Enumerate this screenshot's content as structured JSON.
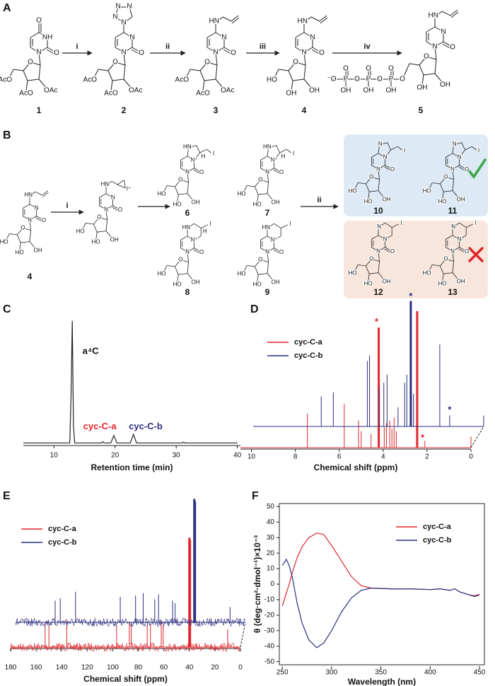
{
  "panel_labels": [
    "A",
    "B",
    "C",
    "D",
    "E",
    "F"
  ],
  "scheme_a": {
    "reagents": [
      "i",
      "ii",
      "iii",
      "iv"
    ],
    "structures": [
      {
        "number": "1",
        "labels": [
          "O",
          "NH",
          "O",
          "N",
          "O",
          "AcO",
          "AcO",
          "OAc"
        ]
      },
      {
        "number": "2",
        "labels": [
          "N",
          "N",
          "N",
          "N",
          "N",
          "O",
          "N",
          "O",
          "AcO",
          "AcO",
          "OAc"
        ]
      },
      {
        "number": "3",
        "labels": [
          "HN",
          "N",
          "O",
          "N",
          "O",
          "AcO",
          "AcO",
          "OAc"
        ]
      },
      {
        "number": "4",
        "labels": [
          "HN",
          "N",
          "O",
          "N",
          "O",
          "HO",
          "OH",
          "OH"
        ]
      },
      {
        "number": "5",
        "labels": [
          "HN",
          "N",
          "O",
          "N",
          "O",
          "O",
          "P",
          "O",
          "OH",
          "O",
          "P",
          "O",
          "OH",
          "O",
          "P",
          "O",
          "OH",
          "⁻O",
          "OH",
          "OH"
        ]
      }
    ]
  },
  "scheme_b": {
    "reagents": [
      "i",
      "ii"
    ],
    "structures": [
      {
        "number": "4",
        "labels": [
          "HN",
          "N",
          "O",
          "N",
          "O",
          "HO",
          "HO",
          "OH"
        ]
      },
      {
        "labels": [
          "HN",
          "I⁺",
          "N",
          "O",
          "N",
          "O",
          "HO",
          "HO",
          "OH"
        ]
      },
      {
        "number": "6",
        "labels": [
          "HN",
          "I",
          "H",
          "N⁺",
          "O",
          "N",
          "O",
          "HO",
          "HO",
          "OH"
        ]
      },
      {
        "number": "7",
        "labels": [
          "HN",
          "I",
          "H",
          "N⁺",
          "O",
          "N",
          "O",
          "HO",
          "HO",
          "OH"
        ]
      },
      {
        "number": "8",
        "labels": [
          "HN",
          "I",
          "H",
          "N⁺",
          "O",
          "N",
          "O",
          "HO",
          "HO",
          "OH"
        ]
      },
      {
        "number": "9",
        "labels": [
          "HN",
          "I",
          "N⁺",
          "O",
          "N",
          "O",
          "HO",
          "HO",
          "OH"
        ]
      },
      {
        "number": "10",
        "labels": [
          "N",
          "I",
          "N",
          "O",
          "N",
          "O",
          "HO",
          "HO",
          "OH"
        ]
      },
      {
        "number": "11",
        "labels": [
          "N",
          "I",
          "N",
          "O",
          "N",
          "O",
          "HO",
          "HO",
          "OH"
        ]
      },
      {
        "number": "12",
        "labels": [
          "N",
          "I",
          "N",
          "O",
          "N",
          "O",
          "HO",
          "HO",
          "OH"
        ]
      },
      {
        "number": "13",
        "labels": [
          "N",
          "I",
          "N",
          "O",
          "N",
          "O",
          "HO",
          "HO",
          "OH"
        ]
      }
    ]
  },
  "chart_data": [
    {
      "type": "line",
      "xlabel": "Retention time (min)",
      "x": [
        5,
        12.6,
        12.8,
        13,
        13.2,
        13.4,
        17.8,
        18,
        18.2,
        19.3,
        19.8,
        20.3,
        22.5,
        23,
        23.5,
        31,
        31.2,
        31.4,
        40
      ],
      "series": [
        {
          "color": "#222222",
          "values": [
            1,
            1,
            40,
            100,
            15,
            1,
            1,
            2,
            1,
            1,
            7,
            1,
            1,
            8,
            1,
            1,
            1.6,
            1,
            1
          ]
        }
      ],
      "xlim": [
        5,
        40.5
      ],
      "xticks": [
        10,
        20,
        30,
        40
      ],
      "ylim": [
        0,
        105
      ],
      "annotations": [
        {
          "text": "a⁴C",
          "x": 16,
          "y": 75,
          "color": "#111111"
        },
        {
          "text": "cyc-C-a",
          "x": 17.5,
          "y": 14,
          "color": "#e0252a"
        },
        {
          "text": "cyc-C-b",
          "x": 25,
          "y": 14,
          "color": "#2b2f7e"
        }
      ]
    },
    {
      "type": "spectrum",
      "xlabel": "Chemical shift (ppm)",
      "xlim": [
        10.5,
        0
      ],
      "xticks": [
        10,
        8,
        6,
        4,
        2,
        0
      ],
      "ylim": [
        0,
        100
      ],
      "series": [
        {
          "name": "cyc-C-a",
          "color": "#e0252a",
          "x": [
            7.45,
            5.77,
            5.12,
            5.0,
            4.55,
            4.2,
            3.95,
            3.85,
            3.7,
            3.6,
            3.5,
            3.4,
            2.45,
            2.1,
            0
          ],
          "values": [
            25,
            32,
            20,
            12,
            10,
            88,
            15,
            18,
            20,
            14,
            22,
            12,
            100,
            5,
            8
          ],
          "annotations": [
            {
              "text": "*",
              "x": 4.3,
              "y": 94
            },
            {
              "text": "*",
              "x": 2.2,
              "y": 9
            }
          ]
        },
        {
          "name": "cyc-C-b",
          "color": "#2b2f7e",
          "x": [
            7.4,
            6.85,
            5.3,
            5.2,
            4.75,
            4.55,
            4.4,
            3.9,
            3.6,
            3.5,
            3.35,
            3.32,
            3.2,
            2.0,
            1.55,
            0
          ],
          "values": [
            22,
            25,
            48,
            52,
            28,
            32,
            38,
            14,
            32,
            38,
            30,
            92,
            24,
            60,
            8,
            8
          ],
          "annotations": [
            {
              "text": "*",
              "x": 3.32,
              "y": 97
            },
            {
              "text": "*",
              "x": 1.55,
              "y": 14
            }
          ]
        }
      ]
    },
    {
      "type": "spectrum",
      "xlabel": "Chemical shift (ppm)",
      "xlim": [
        180,
        0
      ],
      "xticks": [
        180,
        160,
        140,
        120,
        100,
        80,
        60,
        40,
        20,
        0
      ],
      "ylim": [
        0,
        100
      ],
      "series": [
        {
          "name": "cyc-C-a",
          "color": "#e0252a",
          "x": [
            153,
            150,
            136,
            97,
            87,
            85.5,
            73,
            70.5,
            62,
            60.5,
            40,
            39.5,
            10
          ],
          "values": [
            19,
            17,
            22,
            17,
            19,
            18,
            17,
            18,
            19,
            17,
            86,
            84,
            14
          ]
        },
        {
          "name": "cyc-C-b",
          "color": "#2b2f7e",
          "x": [
            149,
            145,
            133,
            98,
            86,
            80,
            71,
            68,
            57,
            55,
            40,
            39.5,
            12
          ],
          "values": [
            17,
            19,
            24,
            20,
            21,
            23,
            18,
            22,
            17,
            15,
            97,
            95,
            12
          ]
        }
      ]
    },
    {
      "type": "line",
      "xlabel": "Wavelength (nm)",
      "ylabel": "θ (deg·cm²·dmol⁻¹)×10⁻³",
      "x": [
        250,
        254,
        257,
        260,
        265,
        270,
        277,
        285,
        292,
        300,
        310,
        320,
        330,
        340,
        360,
        380,
        400,
        410,
        420,
        425,
        430,
        440,
        445,
        450
      ],
      "series": [
        {
          "name": "cyc-C-a",
          "color": "#e0252a",
          "values": [
            -14,
            -6,
            0,
            7,
            17,
            24,
            30,
            33,
            32,
            25,
            15,
            5,
            -1,
            -2.5,
            -3,
            -3,
            -3.5,
            -3,
            -4,
            -3,
            -5,
            -7,
            -7.5,
            -6.5
          ]
        },
        {
          "name": "cyc-C-b",
          "color": "#2b2f7e",
          "values": [
            12,
            16,
            12,
            5,
            -12,
            -25,
            -36,
            -41,
            -38,
            -30,
            -18,
            -9,
            -4,
            -2.5,
            -3,
            -3,
            -3.5,
            -3,
            -4,
            -3,
            -5,
            -7,
            -8,
            -7
          ]
        }
      ],
      "xlim": [
        247,
        455
      ],
      "xticks": [
        250,
        300,
        350,
        400,
        450
      ],
      "ylim": [
        -52,
        52
      ],
      "yticks": [
        50,
        40,
        30,
        20,
        10,
        0,
        -10,
        -20,
        -30,
        -40,
        -50
      ]
    }
  ]
}
